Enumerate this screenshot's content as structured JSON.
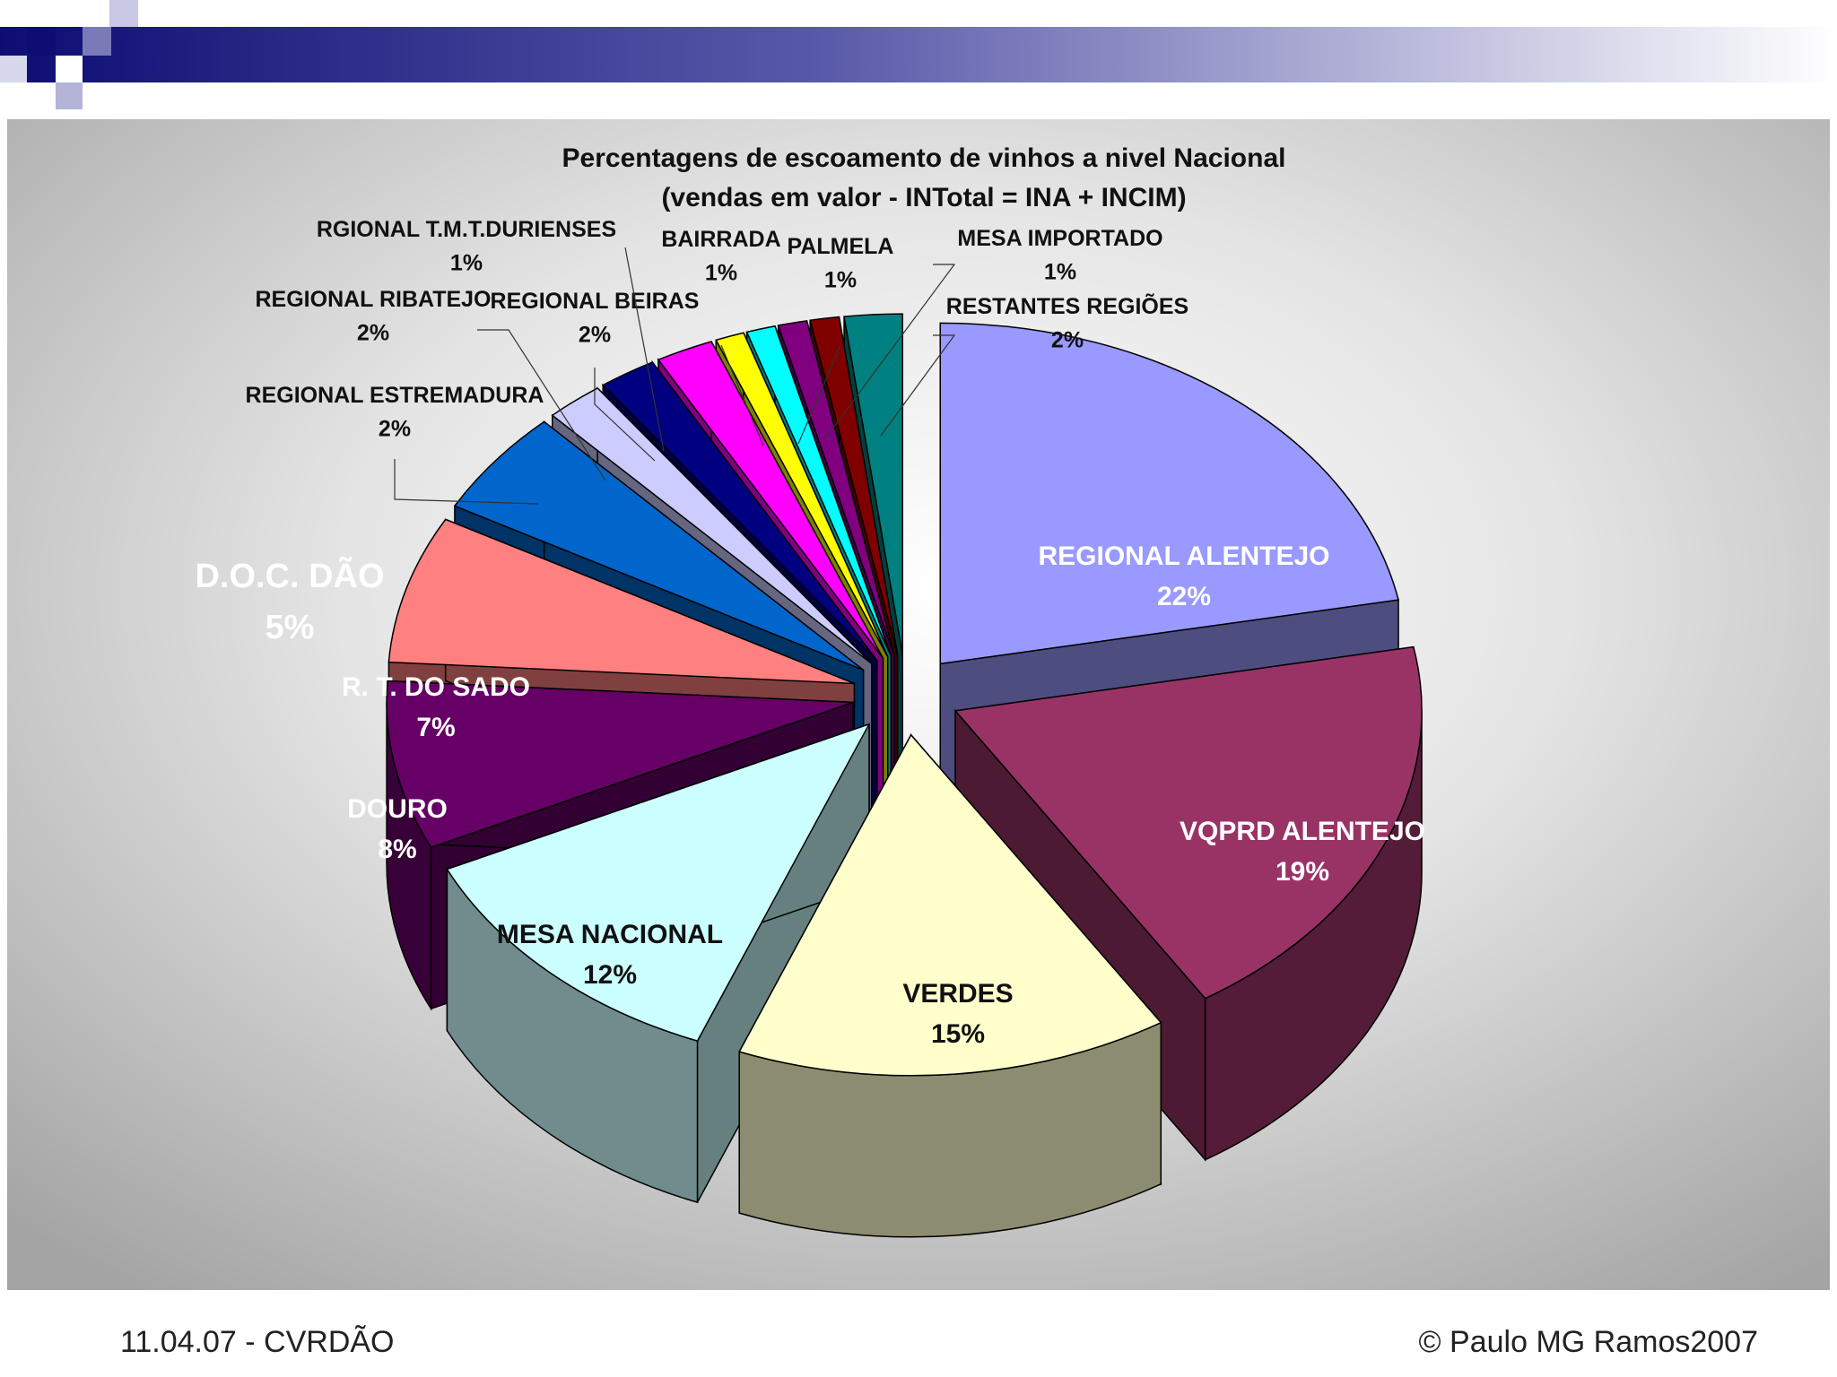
{
  "footer": {
    "left": "11.04.07 - CVRDÃO",
    "right": "© Paulo MG Ramos2007"
  },
  "colors": {
    "header_dark": "#1a1a80",
    "chart_bg_light": "#f6f6f6",
    "chart_bg_dark": "#a8a8a8"
  },
  "chart_data": {
    "type": "pie",
    "title": "Percentagens de escoamento de vinhos a nivel Nacional",
    "subtitle": "(vendas em valor - INTotal = INA + INCIM)",
    "slices": [
      {
        "name": "REGIONAL ALENTEJO",
        "label": "22%",
        "value": 22,
        "color": "#9999ff"
      },
      {
        "name": "VQPRD ALENTEJO",
        "label": "19%",
        "value": 19,
        "color": "#993366"
      },
      {
        "name": "VERDES",
        "label": "15%",
        "value": 15,
        "color": "#ffffcc"
      },
      {
        "name": "MESA NACIONAL",
        "label": "12%",
        "value": 12,
        "color": "#ccffff"
      },
      {
        "name": "DOURO",
        "label": "8%",
        "value": 8,
        "color": "#660066"
      },
      {
        "name": "R. T. DO SADO",
        "label": "7%",
        "value": 7,
        "color": "#ff8080"
      },
      {
        "name": "D.O.C. DÃO",
        "label": "5%",
        "value": 5,
        "color": "#0066cc"
      },
      {
        "name": "REGIONAL ESTREMADURA",
        "label": "2%",
        "value": 2,
        "color": "#ccccff"
      },
      {
        "name": "REGIONAL RIBATEJO",
        "label": "2%",
        "value": 2,
        "color": "#000080"
      },
      {
        "name": "REGIONAL BEIRAS",
        "label": "2%",
        "value": 2,
        "color": "#ff00ff"
      },
      {
        "name": "RGIONAL T.M.T.DURIENSES",
        "label": "1%",
        "value": 1,
        "color": "#ffff00"
      },
      {
        "name": "BAIRRADA",
        "label": "1%",
        "value": 1,
        "color": "#00ffff"
      },
      {
        "name": "PALMELA",
        "label": "1%",
        "value": 1,
        "color": "#800080"
      },
      {
        "name": "MESA IMPORTADO",
        "label": "1%",
        "value": 1,
        "color": "#800000"
      },
      {
        "name": "RESTANTES REGIÕES",
        "label": "2%",
        "value": 2,
        "color": "#008080"
      }
    ]
  }
}
